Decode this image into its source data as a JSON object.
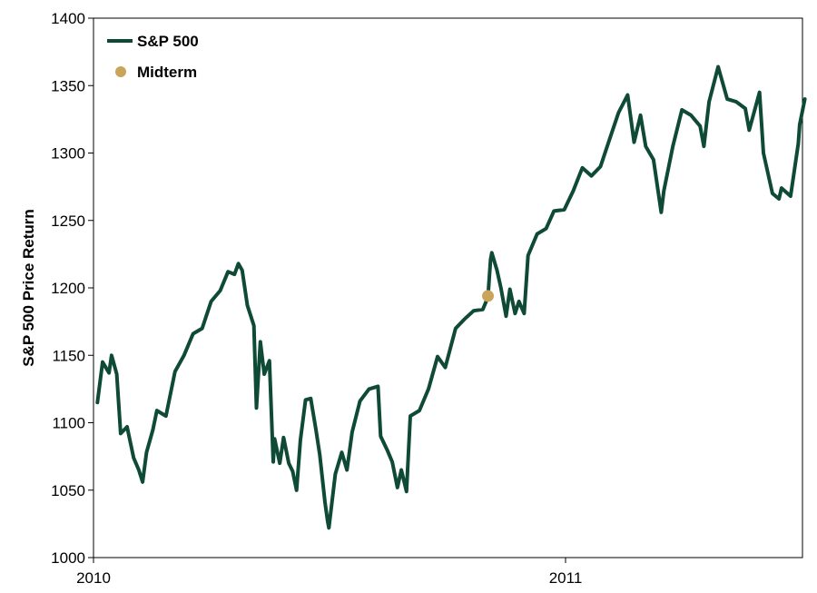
{
  "chart_data": {
    "type": "line",
    "ylabel": "S&P 500 Price Return",
    "ylim": [
      1000,
      1400
    ],
    "yticks": [
      1000,
      1050,
      1100,
      1150,
      1200,
      1250,
      1300,
      1350,
      1400
    ],
    "xticks": [
      "2010",
      "2011"
    ],
    "legend_position": "top-left",
    "colors": {
      "series": "#0f4a36",
      "marker": "#cba45c"
    },
    "series": [
      {
        "name": "S&P 500",
        "x": [
          "2010-01-04",
          "2010-01-08",
          "2010-01-13",
          "2010-01-15",
          "2010-01-19",
          "2010-01-22",
          "2010-01-27",
          "2010-02-01",
          "2010-02-05",
          "2010-02-08",
          "2010-02-11",
          "2010-02-16",
          "2010-02-19",
          "2010-02-26",
          "2010-03-05",
          "2010-03-12",
          "2010-03-19",
          "2010-03-26",
          "2010-04-02",
          "2010-04-09",
          "2010-04-15",
          "2010-04-20",
          "2010-04-23",
          "2010-04-26",
          "2010-04-30",
          "2010-05-05",
          "2010-05-07",
          "2010-05-10",
          "2010-05-13",
          "2010-05-17",
          "2010-05-20",
          "2010-05-21",
          "2010-05-25",
          "2010-05-28",
          "2010-06-01",
          "2010-06-04",
          "2010-06-07",
          "2010-06-10",
          "2010-06-14",
          "2010-06-18",
          "2010-06-22",
          "2010-06-25",
          "2010-06-29",
          "2010-07-01",
          "2010-07-02",
          "2010-07-07",
          "2010-07-12",
          "2010-07-16",
          "2010-07-20",
          "2010-07-26",
          "2010-08-02",
          "2010-08-09",
          "2010-08-11",
          "2010-08-16",
          "2010-08-20",
          "2010-08-24",
          "2010-08-27",
          "2010-08-31",
          "2010-09-03",
          "2010-09-10",
          "2010-09-17",
          "2010-09-24",
          "2010-09-30",
          "2010-10-08",
          "2010-10-15",
          "2010-10-22",
          "2010-10-29",
          "2010-11-02",
          "2010-11-04",
          "2010-11-05",
          "2010-11-09",
          "2010-11-12",
          "2010-11-16",
          "2010-11-19",
          "2010-11-23",
          "2010-11-26",
          "2010-11-30",
          "2010-12-03",
          "2010-12-10",
          "2010-12-17",
          "2010-12-23",
          "2010-12-31",
          "2011-01-07",
          "2011-01-14",
          "2011-01-21",
          "2011-01-28",
          "2011-02-04",
          "2011-02-11",
          "2011-02-18",
          "2011-02-23",
          "2011-02-28",
          "2011-03-04",
          "2011-03-10",
          "2011-03-16",
          "2011-03-18",
          "2011-03-25",
          "2011-04-01",
          "2011-04-08",
          "2011-04-15",
          "2011-04-18",
          "2011-04-22",
          "2011-04-29",
          "2011-05-06",
          "2011-05-13",
          "2011-05-20",
          "2011-05-23",
          "2011-05-31",
          "2011-06-03",
          "2011-06-10",
          "2011-06-15",
          "2011-06-17",
          "2011-06-24",
          "2011-06-30",
          "2011-07-01",
          "2011-07-05"
        ],
        "values": [
          1115,
          1145,
          1137,
          1150,
          1136,
          1092,
          1097,
          1074,
          1065,
          1056,
          1078,
          1095,
          1109,
          1105,
          1138,
          1150,
          1166,
          1170,
          1190,
          1198,
          1212,
          1210,
          1218,
          1213,
          1187,
          1172,
          1111,
          1160,
          1136,
          1146,
          1071,
          1088,
          1070,
          1089,
          1070,
          1064,
          1050,
          1087,
          1117,
          1118,
          1095,
          1076,
          1041,
          1027,
          1022,
          1062,
          1078,
          1065,
          1093,
          1116,
          1125,
          1127,
          1090,
          1080,
          1071,
          1052,
          1065,
          1049,
          1105,
          1109,
          1125,
          1149,
          1141,
          1170,
          1177,
          1183,
          1184,
          1193,
          1221,
          1226,
          1213,
          1200,
          1179,
          1199,
          1181,
          1190,
          1181,
          1224,
          1240,
          1244,
          1257,
          1258,
          1272,
          1289,
          1283,
          1290,
          1310,
          1330,
          1343,
          1308,
          1328,
          1305,
          1295,
          1256,
          1272,
          1305,
          1332,
          1328,
          1320,
          1305,
          1338,
          1364,
          1340,
          1338,
          1333,
          1317,
          1345,
          1300,
          1270,
          1266,
          1274,
          1268,
          1307,
          1321,
          1340
        ]
      }
    ],
    "points": [
      {
        "name": "Midterm",
        "x": "2010-11-02",
        "y": 1194
      }
    ]
  }
}
